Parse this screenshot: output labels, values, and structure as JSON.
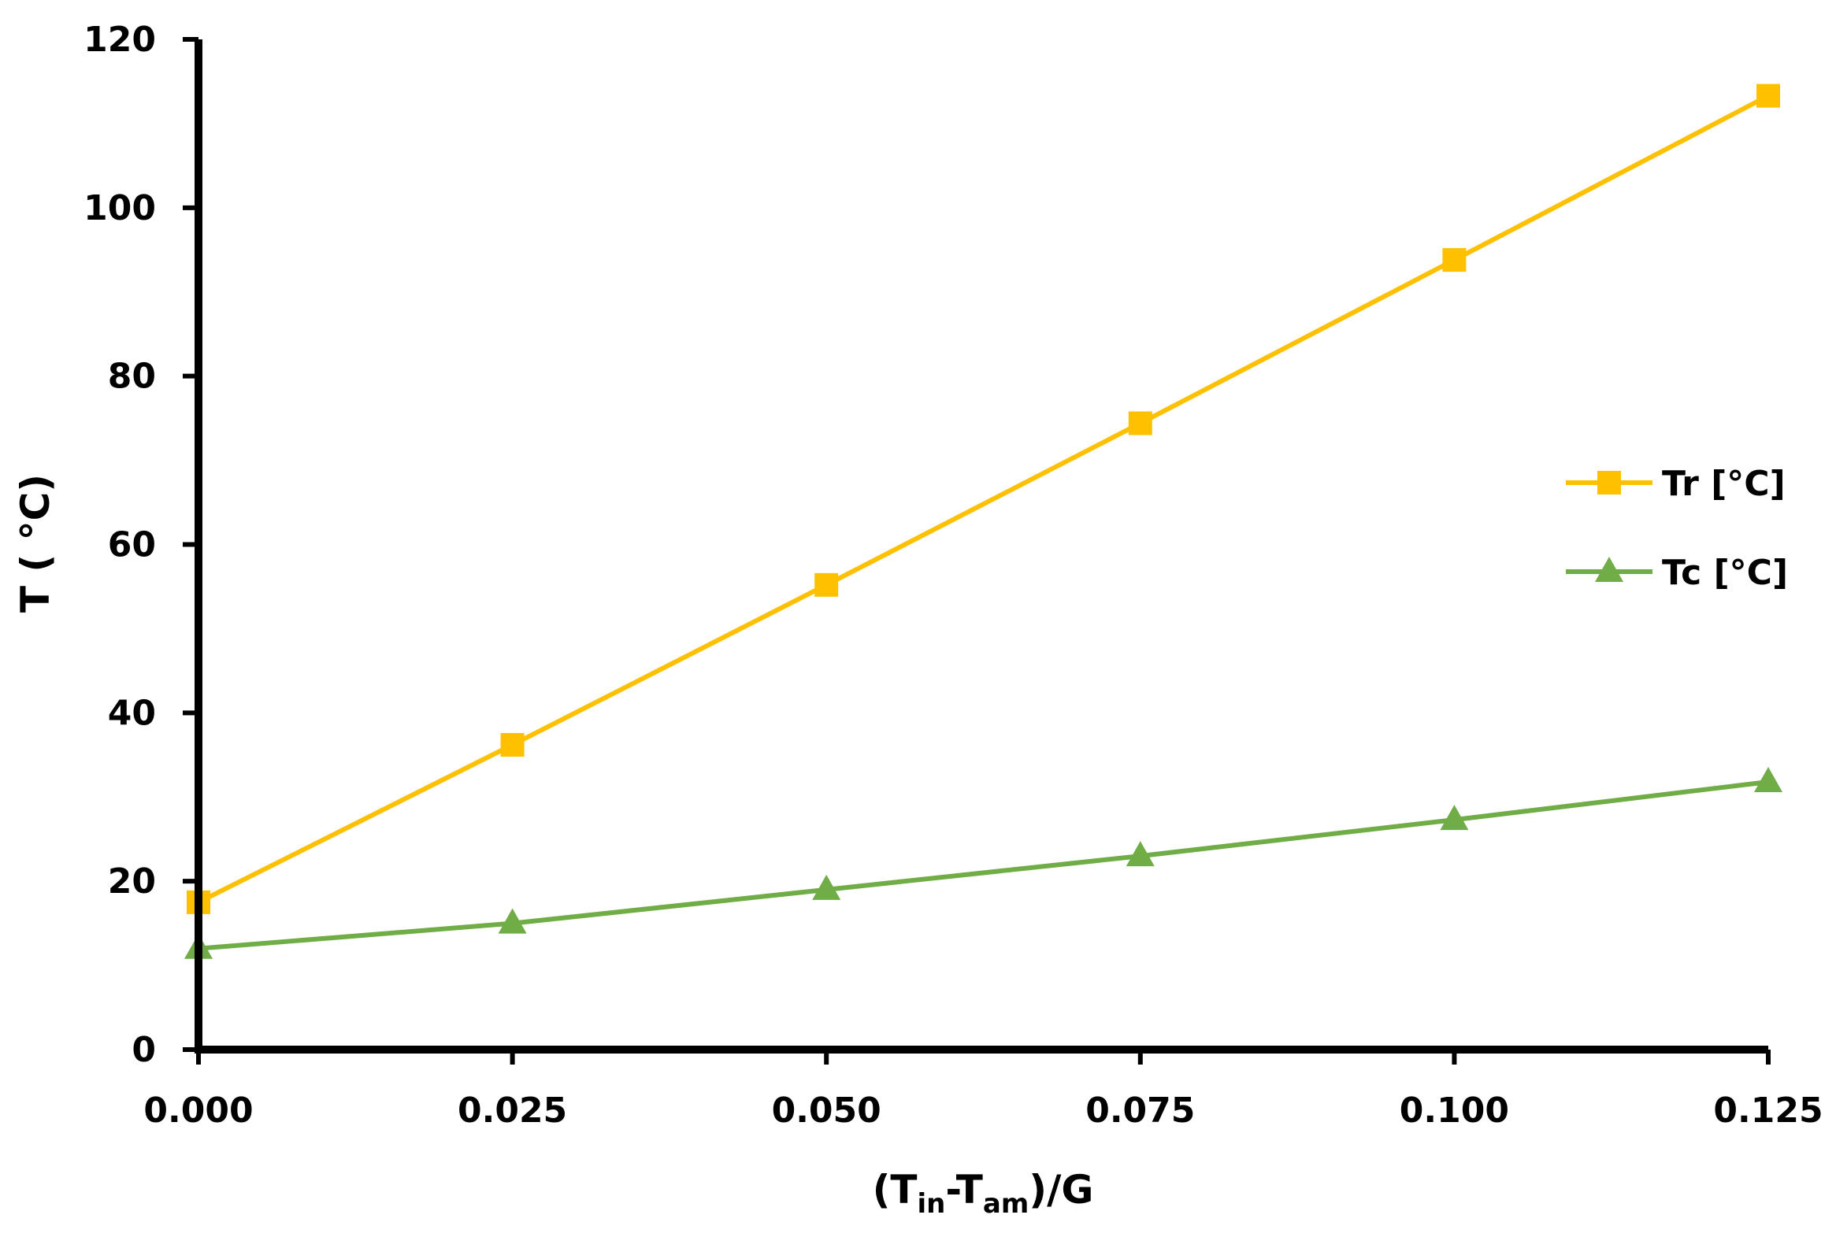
{
  "chart_data": {
    "type": "line",
    "x": [
      0.0,
      0.025,
      0.05,
      0.075,
      0.1,
      0.125
    ],
    "x_tick_labels": [
      "0.000",
      "0.025",
      "0.050",
      "0.075",
      "0.100",
      "0.125"
    ],
    "y_ticks": [
      0,
      20,
      40,
      60,
      80,
      100,
      120
    ],
    "y_tick_labels": [
      "0",
      "20",
      "40",
      "60",
      "80",
      "100",
      "120"
    ],
    "xlim": [
      0,
      0.125
    ],
    "ylim": [
      0,
      120
    ],
    "xlabel": {
      "open": "(T",
      "sub1": "in",
      "dash": "-T",
      "sub2": "am",
      "close": ")/G"
    },
    "ylabel": "T ( °C)",
    "grid": false,
    "legend_position": "right",
    "series": [
      {
        "name": "Tr [°C]",
        "color": "#FFC000",
        "marker": "square",
        "values": [
          17.5,
          36.2,
          55.2,
          74.4,
          93.8,
          113.3
        ]
      },
      {
        "name": "Tc [°C]",
        "color": "#70AD47",
        "marker": "triangle",
        "values": [
          12.0,
          15.0,
          19.0,
          23.0,
          27.3,
          31.8
        ]
      }
    ]
  }
}
